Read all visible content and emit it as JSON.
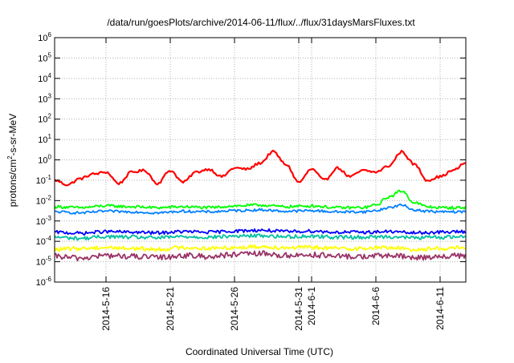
{
  "chart_data": {
    "type": "line",
    "title": "/data/run/goesPlots/archive/2014-06-11/flux/../flux/31daysMarsFluxes.txt",
    "xlabel": "Coordinated Universal Time (UTC)",
    "ylabel": "protons/cm²-s-sr-MeV",
    "ylabel_parts": {
      "pre": "protons/cm",
      "sup": "2",
      "post": "-s-sr-MeV"
    },
    "yscale": "log",
    "ylim": [
      1e-06,
      1000000.0
    ],
    "y_ticks": [
      {
        "exp": -6,
        "label_base": "10",
        "label_exp": "-6"
      },
      {
        "exp": -5,
        "label_base": "10",
        "label_exp": "-5"
      },
      {
        "exp": -4,
        "label_base": "10",
        "label_exp": "-4"
      },
      {
        "exp": -3,
        "label_base": "10",
        "label_exp": "-3"
      },
      {
        "exp": -2,
        "label_base": "10",
        "label_exp": "-2"
      },
      {
        "exp": -1,
        "label_base": "10",
        "label_exp": "-1"
      },
      {
        "exp": 0,
        "label_base": "10",
        "label_exp": "0"
      },
      {
        "exp": 1,
        "label_base": "10",
        "label_exp": "1"
      },
      {
        "exp": 2,
        "label_base": "10",
        "label_exp": "2"
      },
      {
        "exp": 3,
        "label_base": "10",
        "label_exp": "3"
      },
      {
        "exp": 4,
        "label_base": "10",
        "label_exp": "4"
      },
      {
        "exp": 5,
        "label_base": "10",
        "label_exp": "5"
      },
      {
        "exp": 6,
        "label_base": "10",
        "label_exp": "6"
      }
    ],
    "xlim": [
      "2014-05-12",
      "2014-06-13"
    ],
    "x_ticks": [
      "2014-5-16",
      "2014-5-21",
      "2014-5-26",
      "2014-5-31",
      "2014-6-1",
      "2014-6-6",
      "2014-6-11"
    ],
    "x_tick_dates": [
      "2014-05-16",
      "2014-05-21",
      "2014-05-26",
      "2014-05-31",
      "2014-06-01",
      "2014-06-06",
      "2014-06-11"
    ],
    "grid": true,
    "legend": "none",
    "series": [
      {
        "color": "#ff0000",
        "x": [
          "2014-05-12",
          "2014-05-13",
          "2014-05-14",
          "2014-05-15",
          "2014-05-16",
          "2014-05-17",
          "2014-05-18",
          "2014-05-19",
          "2014-05-20",
          "2014-05-21",
          "2014-05-22",
          "2014-05-23",
          "2014-05-24",
          "2014-05-25",
          "2014-05-26",
          "2014-05-27",
          "2014-05-28",
          "2014-05-29",
          "2014-05-30",
          "2014-05-31",
          "2014-06-01",
          "2014-06-02",
          "2014-06-03",
          "2014-06-04",
          "2014-06-05",
          "2014-06-06",
          "2014-06-07",
          "2014-06-08",
          "2014-06-09",
          "2014-06-10",
          "2014-06-11",
          "2014-06-12",
          "2014-06-13"
        ],
        "values": [
          0.1,
          0.06,
          0.12,
          0.2,
          0.25,
          0.07,
          0.25,
          0.3,
          0.07,
          0.3,
          0.08,
          0.25,
          0.35,
          0.15,
          0.4,
          0.35,
          0.7,
          2.5,
          0.6,
          0.08,
          0.35,
          0.1,
          0.4,
          0.15,
          0.3,
          0.25,
          0.5,
          2.5,
          0.6,
          0.1,
          0.15,
          0.3,
          0.7
        ]
      },
      {
        "color": "#00ff00",
        "x": [
          "2014-05-12",
          "2014-05-14",
          "2014-05-16",
          "2014-05-18",
          "2014-05-20",
          "2014-05-22",
          "2014-05-24",
          "2014-05-26",
          "2014-05-28",
          "2014-05-30",
          "2014-06-01",
          "2014-06-03",
          "2014-06-05",
          "2014-06-06",
          "2014-06-07",
          "2014-06-08",
          "2014-06-09",
          "2014-06-10",
          "2014-06-11",
          "2014-06-13"
        ],
        "values": [
          0.005,
          0.0045,
          0.0055,
          0.005,
          0.0045,
          0.005,
          0.0045,
          0.0055,
          0.006,
          0.005,
          0.0055,
          0.0045,
          0.0045,
          0.006,
          0.015,
          0.03,
          0.008,
          0.005,
          0.0045,
          0.0045
        ]
      },
      {
        "color": "#0080ff",
        "x": [
          "2014-05-12",
          "2014-05-14",
          "2014-05-16",
          "2014-05-18",
          "2014-05-20",
          "2014-05-22",
          "2014-05-24",
          "2014-05-26",
          "2014-05-28",
          "2014-05-30",
          "2014-06-01",
          "2014-06-03",
          "2014-06-05",
          "2014-06-06",
          "2014-06-07",
          "2014-06-08",
          "2014-06-09",
          "2014-06-10",
          "2014-06-11",
          "2014-06-13"
        ],
        "values": [
          0.0028,
          0.0025,
          0.003,
          0.0028,
          0.0025,
          0.003,
          0.0028,
          0.0032,
          0.0035,
          0.003,
          0.0032,
          0.0028,
          0.0028,
          0.0032,
          0.0045,
          0.006,
          0.0035,
          0.003,
          0.0028,
          0.0028
        ]
      },
      {
        "color": "#0000ff",
        "x": [
          "2014-05-12",
          "2014-05-14",
          "2014-05-16",
          "2014-05-18",
          "2014-05-20",
          "2014-05-22",
          "2014-05-24",
          "2014-05-26",
          "2014-05-28",
          "2014-05-30",
          "2014-06-01",
          "2014-06-03",
          "2014-06-05",
          "2014-06-07",
          "2014-06-09",
          "2014-06-11",
          "2014-06-13"
        ],
        "values": [
          0.00028,
          0.00025,
          0.0003,
          0.00028,
          0.00026,
          0.0003,
          0.00028,
          0.00032,
          0.00035,
          0.0003,
          0.00032,
          0.00028,
          0.00028,
          0.0003,
          0.00026,
          0.00028,
          0.0003
        ]
      },
      {
        "color": "#00c0a0",
        "x": [
          "2014-05-12",
          "2014-05-14",
          "2014-05-16",
          "2014-05-18",
          "2014-05-20",
          "2014-05-22",
          "2014-05-24",
          "2014-05-26",
          "2014-05-28",
          "2014-05-30",
          "2014-06-01",
          "2014-06-03",
          "2014-06-05",
          "2014-06-07",
          "2014-06-09",
          "2014-06-11",
          "2014-06-13"
        ],
        "values": [
          0.00016,
          0.00014,
          0.00017,
          0.00016,
          0.00015,
          0.00017,
          0.00016,
          0.00018,
          0.00019,
          0.00017,
          0.00018,
          0.00016,
          0.00016,
          0.00017,
          0.00015,
          0.00016,
          0.00017
        ]
      },
      {
        "color": "#ffff00",
        "x": [
          "2014-05-12",
          "2014-05-14",
          "2014-05-16",
          "2014-05-18",
          "2014-05-20",
          "2014-05-22",
          "2014-05-24",
          "2014-05-26",
          "2014-05-28",
          "2014-05-30",
          "2014-06-01",
          "2014-06-03",
          "2014-06-05",
          "2014-06-07",
          "2014-06-09",
          "2014-06-11",
          "2014-06-13"
        ],
        "values": [
          4e-05,
          4.5e-05,
          5e-05,
          4.5e-05,
          4e-05,
          5e-05,
          4.5e-05,
          5e-05,
          5.5e-05,
          5e-05,
          5e-05,
          4.5e-05,
          4.5e-05,
          5e-05,
          4e-05,
          4.5e-05,
          5e-05
        ]
      },
      {
        "color": "#993366",
        "x": [
          "2014-05-12",
          "2014-05-14",
          "2014-05-16",
          "2014-05-18",
          "2014-05-20",
          "2014-05-22",
          "2014-05-24",
          "2014-05-26",
          "2014-05-28",
          "2014-05-30",
          "2014-06-01",
          "2014-06-03",
          "2014-06-05",
          "2014-06-07",
          "2014-06-09",
          "2014-06-11",
          "2014-06-13"
        ],
        "values": [
          1.8e-05,
          1.5e-05,
          2e-05,
          1.8e-05,
          1.6e-05,
          2e-05,
          1.8e-05,
          2.2e-05,
          2.5e-05,
          2e-05,
          2.2e-05,
          1.8e-05,
          1.8e-05,
          2e-05,
          1.6e-05,
          1.8e-05,
          2e-05
        ]
      }
    ]
  }
}
